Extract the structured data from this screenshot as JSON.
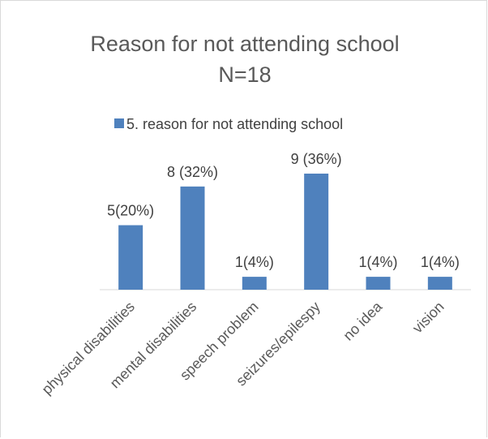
{
  "chart_data": {
    "type": "bar",
    "title": "Reason for not attending school",
    "subtitle": "N=18",
    "categories": [
      "physical disabilities",
      "mental disabilities",
      "speech problem",
      "seizures/epilespy",
      "no idea",
      "vision"
    ],
    "series": [
      {
        "name": "5. reason for not attending school",
        "values": [
          5,
          8,
          1,
          9,
          1,
          1
        ],
        "data_labels": [
          "5(20%)",
          "8 (32%)",
          "1(4%)",
          "9 (36%)",
          "1(4%)",
          "1(4%)"
        ],
        "color": "#4f81bd"
      }
    ],
    "ylim": [
      0,
      9.5
    ],
    "grid": false,
    "legend": "top"
  }
}
